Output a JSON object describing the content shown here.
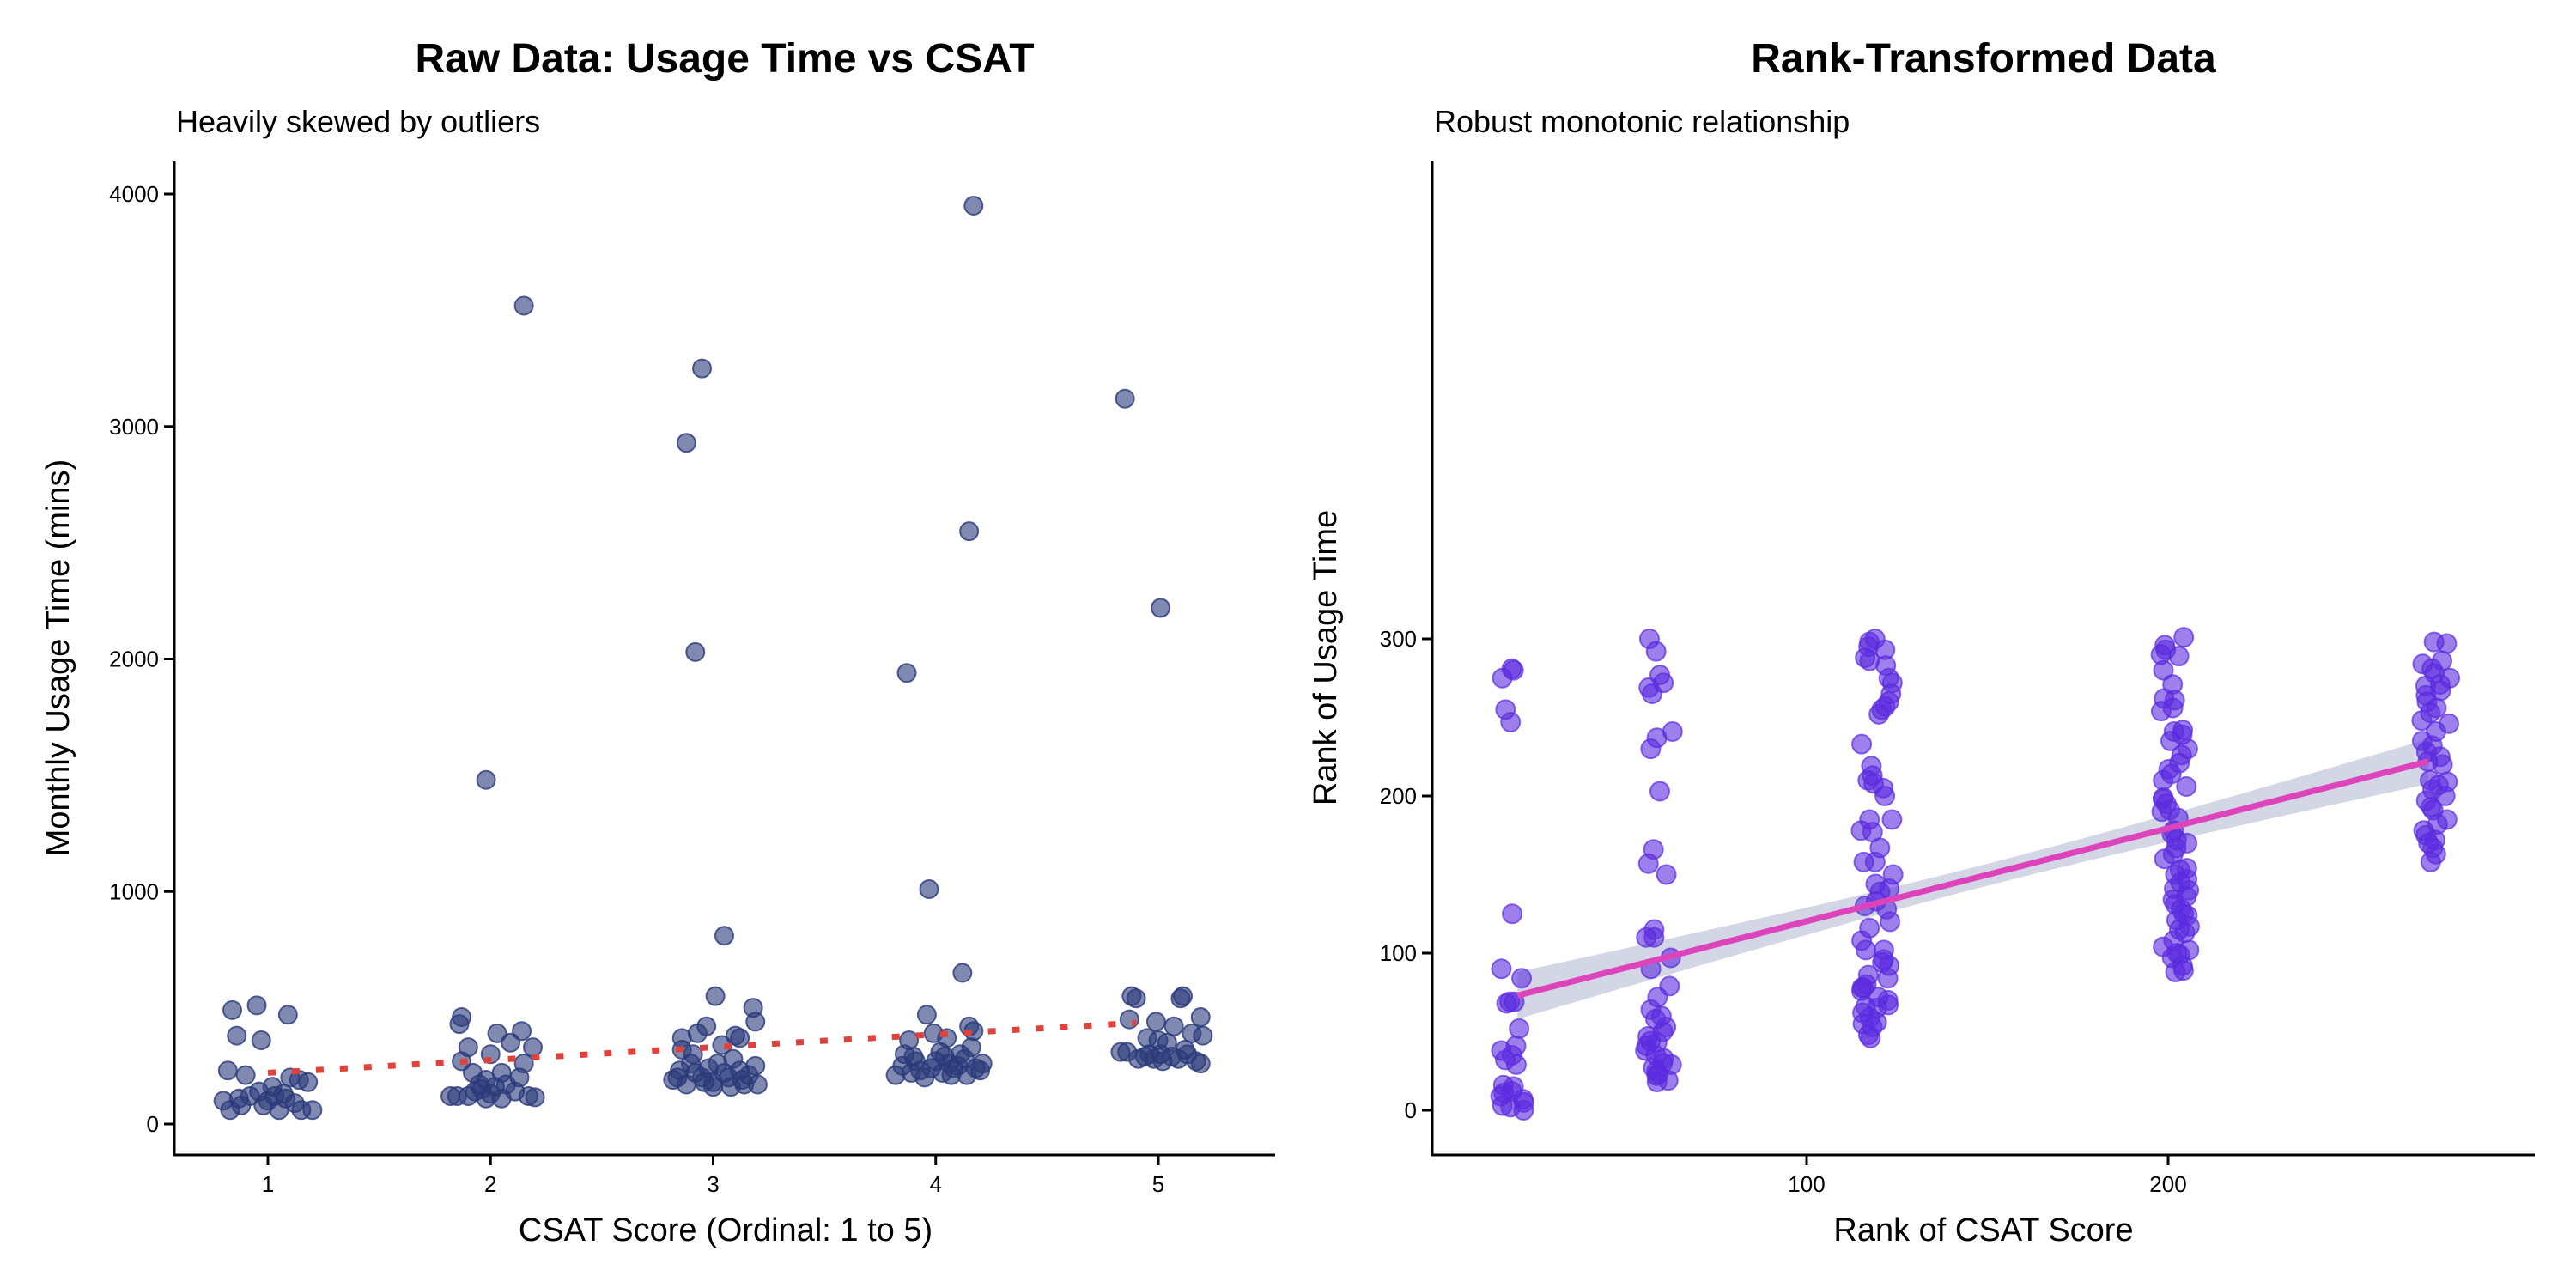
{
  "chart_data": [
    {
      "type": "scatter",
      "title": "Raw Data: Usage Time vs CSAT",
      "subtitle": "Heavily skewed by outliers",
      "xlabel": "CSAT Score (Ordinal: 1 to 5)",
      "ylabel": "Monthly Usage Time (mins)",
      "xlim": [
        0.6,
        5.45
      ],
      "ylim": [
        -130,
        4150
      ],
      "xticks": [
        "1",
        "2",
        "3",
        "4",
        "5"
      ],
      "yticks": [
        "0",
        "1000",
        "2000",
        "3000",
        "4000"
      ],
      "point_color": "#2b3a7a",
      "trend_color": "#e0413a",
      "trend_style": "dotted",
      "trend_line": [
        [
          1,
          220
        ],
        [
          4.9,
          435
        ]
      ],
      "points": [
        [
          2.15,
          3520
        ],
        [
          1.98,
          1480
        ],
        [
          2.95,
          3250
        ],
        [
          2.88,
          2930
        ],
        [
          2.92,
          2030
        ],
        [
          3.05,
          810
        ],
        [
          4.17,
          3950
        ],
        [
          4.15,
          2550
        ],
        [
          3.87,
          1940
        ],
        [
          3.97,
          1010
        ],
        [
          4.12,
          650
        ],
        [
          4.85,
          3120
        ],
        [
          5.01,
          2220
        ],
        [
          0.84,
          490
        ],
        [
          0.95,
          510
        ],
        [
          1.09,
          470
        ],
        [
          0.86,
          380
        ],
        [
          0.97,
          360
        ],
        [
          0.82,
          230
        ],
        [
          0.9,
          210
        ],
        [
          1.1,
          200
        ],
        [
          1.18,
          180
        ],
        [
          1.14,
          190
        ],
        [
          0.8,
          100
        ],
        [
          0.83,
          60
        ],
        [
          0.88,
          80
        ],
        [
          0.92,
          120
        ],
        [
          0.96,
          140
        ],
        [
          1.0,
          100
        ],
        [
          1.02,
          160
        ],
        [
          1.05,
          60
        ],
        [
          1.07,
          130
        ],
        [
          1.12,
          90
        ],
        [
          1.15,
          60
        ],
        [
          1.2,
          60
        ],
        [
          0.98,
          80
        ],
        [
          0.87,
          110
        ],
        [
          1.03,
          120
        ],
        [
          1.08,
          110
        ],
        [
          1.87,
          460
        ],
        [
          1.86,
          430
        ],
        [
          2.03,
          390
        ],
        [
          2.14,
          400
        ],
        [
          2.09,
          350
        ],
        [
          2.19,
          330
        ],
        [
          1.9,
          330
        ],
        [
          2.0,
          300
        ],
        [
          1.87,
          270
        ],
        [
          2.15,
          260
        ],
        [
          1.92,
          220
        ],
        [
          2.13,
          200
        ],
        [
          1.98,
          190
        ],
        [
          2.05,
          220
        ],
        [
          1.96,
          150
        ],
        [
          2.02,
          160
        ],
        [
          2.07,
          170
        ],
        [
          1.93,
          140
        ],
        [
          2.11,
          140
        ],
        [
          1.82,
          120
        ],
        [
          1.85,
          120
        ],
        [
          1.9,
          120
        ],
        [
          1.98,
          110
        ],
        [
          2.05,
          110
        ],
        [
          2.17,
          120
        ],
        [
          2.2,
          115
        ],
        [
          2.0,
          130
        ],
        [
          1.95,
          170
        ],
        [
          3.01,
          550
        ],
        [
          3.18,
          500
        ],
        [
          3.19,
          440
        ],
        [
          2.97,
          420
        ],
        [
          2.93,
          390
        ],
        [
          2.86,
          370
        ],
        [
          3.1,
          380
        ],
        [
          3.12,
          370
        ],
        [
          3.04,
          340
        ],
        [
          2.86,
          320
        ],
        [
          2.91,
          300
        ],
        [
          3.09,
          280
        ],
        [
          3.19,
          250
        ],
        [
          2.85,
          230
        ],
        [
          2.82,
          190
        ],
        [
          2.88,
          170
        ],
        [
          2.95,
          200
        ],
        [
          3.0,
          180
        ],
        [
          3.05,
          220
        ],
        [
          3.14,
          170
        ],
        [
          3.2,
          170
        ],
        [
          2.9,
          260
        ],
        [
          2.98,
          240
        ],
        [
          3.07,
          200
        ],
        [
          3.16,
          210
        ],
        [
          2.92,
          220
        ],
        [
          3.02,
          260
        ],
        [
          3.12,
          230
        ],
        [
          2.84,
          200
        ],
        [
          3.0,
          160
        ],
        [
          3.08,
          160
        ],
        [
          2.96,
          180
        ],
        [
          3.13,
          190
        ],
        [
          3.96,
          470
        ],
        [
          4.15,
          420
        ],
        [
          3.88,
          360
        ],
        [
          3.99,
          390
        ],
        [
          4.05,
          370
        ],
        [
          4.17,
          400
        ],
        [
          4.21,
          260
        ],
        [
          3.82,
          210
        ],
        [
          3.85,
          250
        ],
        [
          3.9,
          290
        ],
        [
          3.93,
          230
        ],
        [
          4.0,
          270
        ],
        [
          4.03,
          220
        ],
        [
          4.08,
          240
        ],
        [
          4.11,
          300
        ],
        [
          4.14,
          210
        ],
        [
          4.18,
          240
        ],
        [
          4.2,
          230
        ],
        [
          3.86,
          300
        ],
        [
          3.95,
          200
        ],
        [
          4.02,
          310
        ],
        [
          4.06,
          260
        ],
        [
          4.1,
          250
        ],
        [
          4.13,
          280
        ],
        [
          3.91,
          270
        ],
        [
          3.98,
          240
        ],
        [
          4.16,
          330
        ],
        [
          4.07,
          210
        ],
        [
          3.89,
          220
        ],
        [
          4.04,
          290
        ],
        [
          4.88,
          550
        ],
        [
          4.9,
          540
        ],
        [
          5.11,
          550
        ],
        [
          5.1,
          540
        ],
        [
          5.19,
          460
        ],
        [
          4.87,
          450
        ],
        [
          4.99,
          440
        ],
        [
          5.07,
          420
        ],
        [
          5.15,
          390
        ],
        [
          5.2,
          380
        ],
        [
          4.95,
          370
        ],
        [
          5.0,
          360
        ],
        [
          5.04,
          350
        ],
        [
          4.83,
          310
        ],
        [
          4.86,
          310
        ],
        [
          4.91,
          280
        ],
        [
          4.96,
          300
        ],
        [
          5.02,
          270
        ],
        [
          5.06,
          290
        ],
        [
          5.09,
          280
        ],
        [
          5.13,
          300
        ],
        [
          5.17,
          270
        ],
        [
          5.19,
          260
        ],
        [
          4.94,
          290
        ],
        [
          5.01,
          300
        ],
        [
          5.12,
          320
        ],
        [
          4.98,
          280
        ]
      ]
    },
    {
      "type": "scatter",
      "title": "Rank-Transformed Data",
      "subtitle": "Robust monotonic relationship",
      "xlabel": "Rank of CSAT Score",
      "ylabel": "Rank of Usage Time",
      "xlim": [
        -3.5,
        301
      ],
      "ylim": [
        -28,
        315
      ],
      "xticks": [
        "100",
        "200"
      ],
      "yticks": [
        "0",
        "100",
        "200",
        "300"
      ],
      "point_color": "#5b2be0",
      "fit_color": "#dd44bb",
      "band_color": "#c3c8dc",
      "fit_line": [
        [
          20,
          73
        ],
        [
          272,
          222
        ]
      ],
      "ci_halfwidth": {
        "at_20": 15,
        "at_150": 7,
        "at_272": 14
      },
      "groups": [
        {
          "x_range": [
            15,
            22
          ],
          "y": [
            281,
            280,
            275,
            255,
            247,
            125,
            90,
            84,
            69,
            69,
            68,
            52,
            41,
            38,
            35,
            32,
            29,
            16,
            15,
            12,
            11,
            9,
            7,
            5,
            3,
            2,
            0
          ]
        },
        {
          "x_range": [
            55,
            63
          ],
          "y": [
            300,
            292,
            277,
            272,
            265,
            269,
            241,
            237,
            230,
            203,
            166,
            157,
            150,
            115,
            110,
            110,
            97,
            90,
            79,
            72,
            64,
            60,
            58,
            53,
            50,
            47,
            44,
            43,
            41,
            38,
            35,
            33,
            30,
            29,
            27,
            25,
            23,
            22,
            19,
            18
          ]
        },
        {
          "x_range": [
            115,
            124
          ],
          "y": [
            300,
            298,
            295,
            293,
            288,
            286,
            283,
            275,
            272,
            265,
            260,
            257,
            255,
            252,
            233,
            219,
            213,
            210,
            208,
            205,
            200,
            185,
            185,
            178,
            177,
            167,
            158,
            158,
            150,
            144,
            141,
            139,
            133,
            130,
            128,
            120,
            116,
            108,
            102,
            102,
            96,
            94,
            92,
            86,
            84,
            80,
            78,
            78,
            76,
            72,
            70,
            67,
            66,
            65,
            62,
            59,
            56,
            55,
            53,
            48,
            46
          ]
        },
        {
          "x_range": [
            198,
            206
          ],
          "y": [
            301,
            296,
            293,
            290,
            289,
            280,
            271,
            262,
            261,
            256,
            254,
            242,
            241,
            239,
            235,
            230,
            226,
            221,
            217,
            214,
            210,
            206,
            199,
            198,
            195,
            191,
            190,
            186,
            178,
            176,
            172,
            170,
            167,
            163,
            160,
            154,
            153,
            150,
            147,
            145,
            141,
            140,
            136,
            134,
            131,
            128,
            125,
            124,
            121,
            117,
            115,
            113,
            108,
            104,
            102,
            100,
            99,
            97,
            92,
            89,
            88
          ]
        },
        {
          "x_range": [
            270,
            278
          ],
          "y": [
            298,
            297,
            286,
            284,
            281,
            278,
            275,
            271,
            270,
            267,
            264,
            260,
            256,
            253,
            248,
            246,
            241,
            235,
            232,
            228,
            225,
            222,
            220,
            210,
            209,
            207,
            204,
            200,
            197,
            193,
            191,
            185,
            182,
            178,
            175,
            172,
            170,
            167,
            163,
            158
          ]
        }
      ]
    }
  ]
}
